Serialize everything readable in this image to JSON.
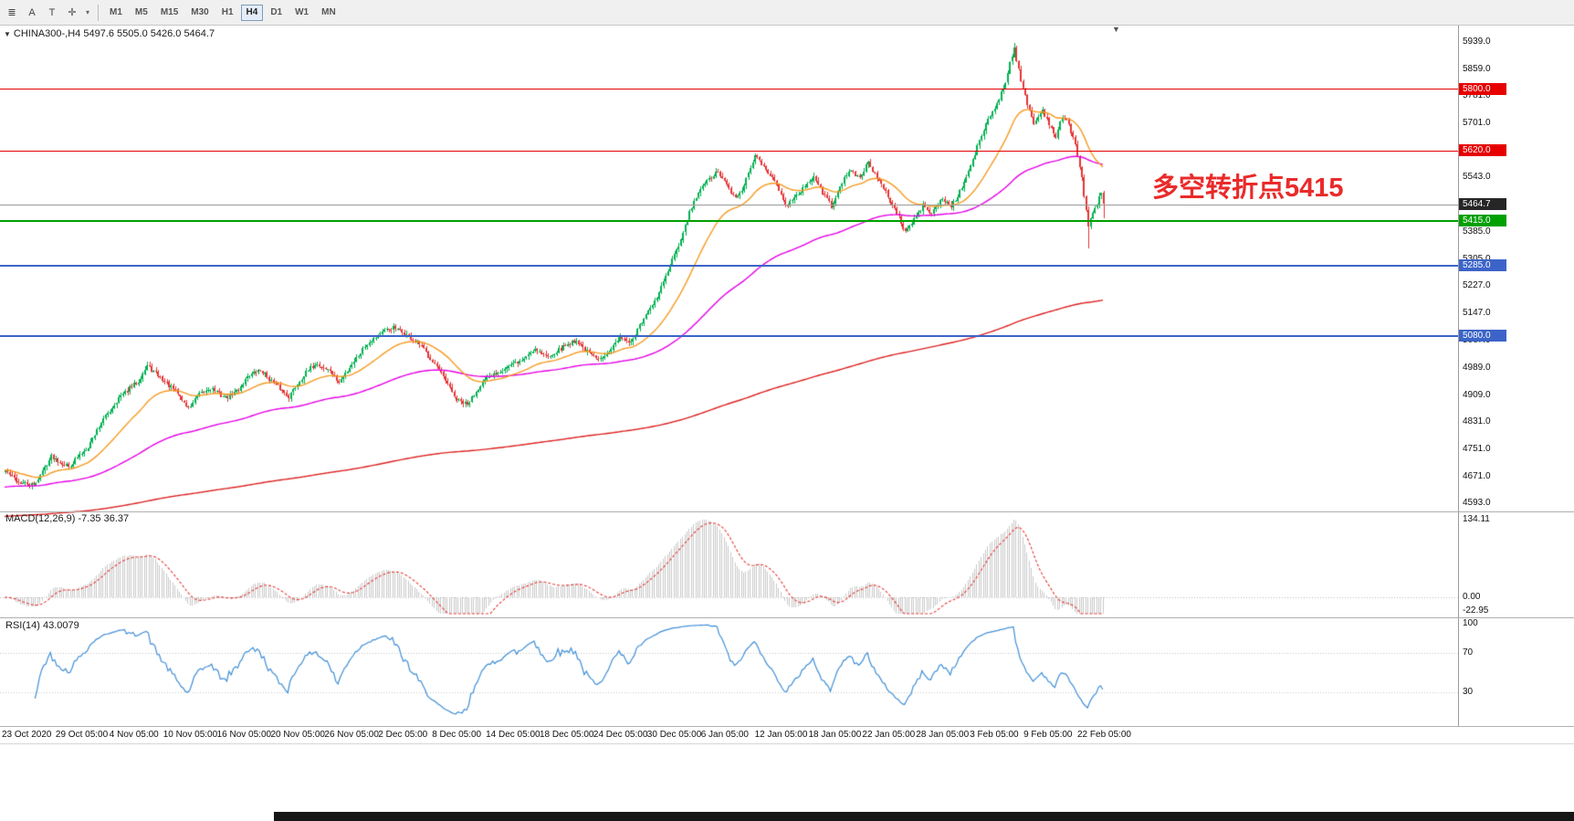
{
  "toolbar": {
    "buttons": [
      {
        "id": "chart-list",
        "glyph": "≣"
      },
      {
        "id": "label-a",
        "glyph": "A"
      },
      {
        "id": "text-tool",
        "glyph": "T"
      },
      {
        "id": "crosshair",
        "glyph": "✛"
      },
      {
        "id": "tool-dropdown",
        "glyph": "▾"
      }
    ],
    "timeframes": [
      "M1",
      "M5",
      "M15",
      "M30",
      "H1",
      "H4",
      "D1",
      "W1",
      "MN"
    ],
    "active_timeframe": "H4"
  },
  "chart": {
    "collapse_icon": "▼",
    "title": "CHINA300-,H4 5497.6 5505.0 5426.0 5464.7",
    "symbol": "CHINA300-",
    "period": "H4",
    "ohlc": {
      "open": "5497.6",
      "high": "5505.0",
      "low": "5426.0",
      "close": "5464.7"
    },
    "annotation": {
      "text": "多空转折点5415",
      "color": "#ea2a2a"
    },
    "current_price": {
      "label": "5464.7",
      "price": 5464.7,
      "box_color": "#262626",
      "line_color": "#9a9a9a"
    },
    "hlines": [
      {
        "price": 5800.0,
        "label": "5800.0",
        "color": "#e60000",
        "width": 1
      },
      {
        "price": 5620.0,
        "label": "5620.0",
        "color": "#e60000",
        "width": 1
      },
      {
        "price": 5415.0,
        "label": "5415.0",
        "color": "#00a000",
        "width": 2
      },
      {
        "price": 5285.0,
        "label": "5285.0",
        "color": "#3c64c8",
        "width": 2
      },
      {
        "price": 5080.0,
        "label": "5080.0",
        "color": "#3c64c8",
        "width": 2
      }
    ],
    "price_axis_labels": [
      "5939.0",
      "5859.0",
      "5781.0",
      "5701.0",
      "5621.0",
      "5543.0",
      "5465.0",
      "5385.0",
      "5305.0",
      "5227.0",
      "5147.0",
      "5067.0",
      "4989.0",
      "4909.0",
      "4831.0",
      "4751.0",
      "4671.0",
      "4593.0"
    ],
    "shift_marker": "▼"
  },
  "macd": {
    "title": "MACD(12,26,9) -7.35 36.37",
    "axis_labels": [
      "134.11",
      "0.00",
      "-22.95"
    ]
  },
  "rsi": {
    "title": "RSI(14) 43.0079",
    "axis_labels": [
      "100",
      "70",
      "30"
    ]
  },
  "x_axis": {
    "dates": [
      "23 Oct 2020",
      "29 Oct 05:00",
      "4 Nov 05:00",
      "10 Nov 05:00",
      "16 Nov 05:00",
      "20 Nov 05:00",
      "26 Nov 05:00",
      "2 Dec 05:00",
      "8 Dec 05:00",
      "14 Dec 05:00",
      "18 Dec 05:00",
      "24 Dec 05:00",
      "30 Dec 05:00",
      "6 Jan 05:00",
      "12 Jan 05:00",
      "18 Jan 05:00",
      "22 Jan 05:00",
      "28 Jan 05:00",
      "3 Feb 05:00",
      "9 Feb 05:00",
      "22 Feb 05:00"
    ]
  },
  "chart_data": {
    "type": "candlestick",
    "symbol": "CHINA300",
    "timeframe": "H4",
    "bars": 505,
    "price_range_visible": [
      4570,
      5983
    ],
    "last_ohlc": {
      "open": 5497.6,
      "high": 5505.0,
      "low": 5426.0,
      "close": 5464.7
    },
    "price_waypoints": [
      [
        0,
        4690
      ],
      [
        6,
        4655
      ],
      [
        13,
        4645
      ],
      [
        21,
        4730
      ],
      [
        29,
        4700
      ],
      [
        38,
        4760
      ],
      [
        44,
        4830
      ],
      [
        52,
        4900
      ],
      [
        61,
        4950
      ],
      [
        65,
        4995
      ],
      [
        71,
        4960
      ],
      [
        78,
        4920
      ],
      [
        84,
        4870
      ],
      [
        88,
        4905
      ],
      [
        94,
        4930
      ],
      [
        101,
        4900
      ],
      [
        107,
        4925
      ],
      [
        111,
        4965
      ],
      [
        117,
        4980
      ],
      [
        124,
        4940
      ],
      [
        130,
        4905
      ],
      [
        136,
        4960
      ],
      [
        142,
        5000
      ],
      [
        149,
        4980
      ],
      [
        153,
        4945
      ],
      [
        159,
        5000
      ],
      [
        166,
        5060
      ],
      [
        172,
        5090
      ],
      [
        178,
        5105
      ],
      [
        184,
        5085
      ],
      [
        191,
        5050
      ],
      [
        197,
        5000
      ],
      [
        201,
        4960
      ],
      [
        207,
        4895
      ],
      [
        212,
        4880
      ],
      [
        218,
        4940
      ],
      [
        224,
        4970
      ],
      [
        230,
        4990
      ],
      [
        237,
        5010
      ],
      [
        243,
        5045
      ],
      [
        249,
        5020
      ],
      [
        256,
        5050
      ],
      [
        262,
        5070
      ],
      [
        266,
        5040
      ],
      [
        272,
        5010
      ],
      [
        277,
        5040
      ],
      [
        283,
        5080
      ],
      [
        287,
        5060
      ],
      [
        291,
        5110
      ],
      [
        298,
        5180
      ],
      [
        302,
        5240
      ],
      [
        306,
        5300
      ],
      [
        310,
        5360
      ],
      [
        314,
        5440
      ],
      [
        318,
        5500
      ],
      [
        323,
        5540
      ],
      [
        327,
        5560
      ],
      [
        331,
        5520
      ],
      [
        335,
        5480
      ],
      [
        339,
        5520
      ],
      [
        344,
        5605
      ],
      [
        348,
        5580
      ],
      [
        352,
        5540
      ],
      [
        356,
        5500
      ],
      [
        358,
        5460
      ],
      [
        362,
        5480
      ],
      [
        367,
        5520
      ],
      [
        371,
        5545
      ],
      [
        375,
        5500
      ],
      [
        379,
        5460
      ],
      [
        383,
        5520
      ],
      [
        388,
        5565
      ],
      [
        392,
        5540
      ],
      [
        396,
        5590
      ],
      [
        400,
        5540
      ],
      [
        404,
        5500
      ],
      [
        409,
        5440
      ],
      [
        413,
        5385
      ],
      [
        417,
        5420
      ],
      [
        421,
        5460
      ],
      [
        425,
        5440
      ],
      [
        430,
        5480
      ],
      [
        434,
        5460
      ],
      [
        438,
        5500
      ],
      [
        442,
        5560
      ],
      [
        446,
        5630
      ],
      [
        450,
        5700
      ],
      [
        455,
        5760
      ],
      [
        459,
        5820
      ],
      [
        461,
        5880
      ],
      [
        463,
        5920
      ],
      [
        466,
        5820
      ],
      [
        469,
        5760
      ],
      [
        472,
        5700
      ],
      [
        476,
        5740
      ],
      [
        479,
        5700
      ],
      [
        482,
        5660
      ],
      [
        485,
        5720
      ],
      [
        488,
        5700
      ],
      [
        491,
        5640
      ],
      [
        494,
        5540
      ],
      [
        497,
        5400
      ],
      [
        500,
        5455
      ],
      [
        503,
        5497.6
      ],
      [
        504,
        5464.7
      ]
    ],
    "spike_high": {
      "bar": 463,
      "price": 5934
    },
    "spike_low": {
      "bar": 497,
      "price": 5336
    },
    "colors": {
      "up": "#00b050",
      "down": "#e53333"
    },
    "moving_averages": [
      {
        "name": "fast-ma",
        "color": "#f79a1f",
        "period": 30,
        "seed": 4690
      },
      {
        "name": "mid-ma",
        "color": "#e600e6",
        "period": 120,
        "seed": 4640
      },
      {
        "name": "slow-ma",
        "color": "#dd2222",
        "period": 600,
        "seed": 4555
      }
    ],
    "indicators": {
      "macd": {
        "params": [
          12,
          26,
          9
        ],
        "current_main": -7.35,
        "current_signal": 36.37,
        "axis_max": 134.11,
        "axis_min": -22.95,
        "histogram_color": "#c9c9c9",
        "signal_color": "#e53935"
      },
      "rsi": {
        "period": 14,
        "current": 43.0079,
        "levels": [
          70,
          30
        ],
        "line_color": "#3e8ed6"
      }
    }
  }
}
